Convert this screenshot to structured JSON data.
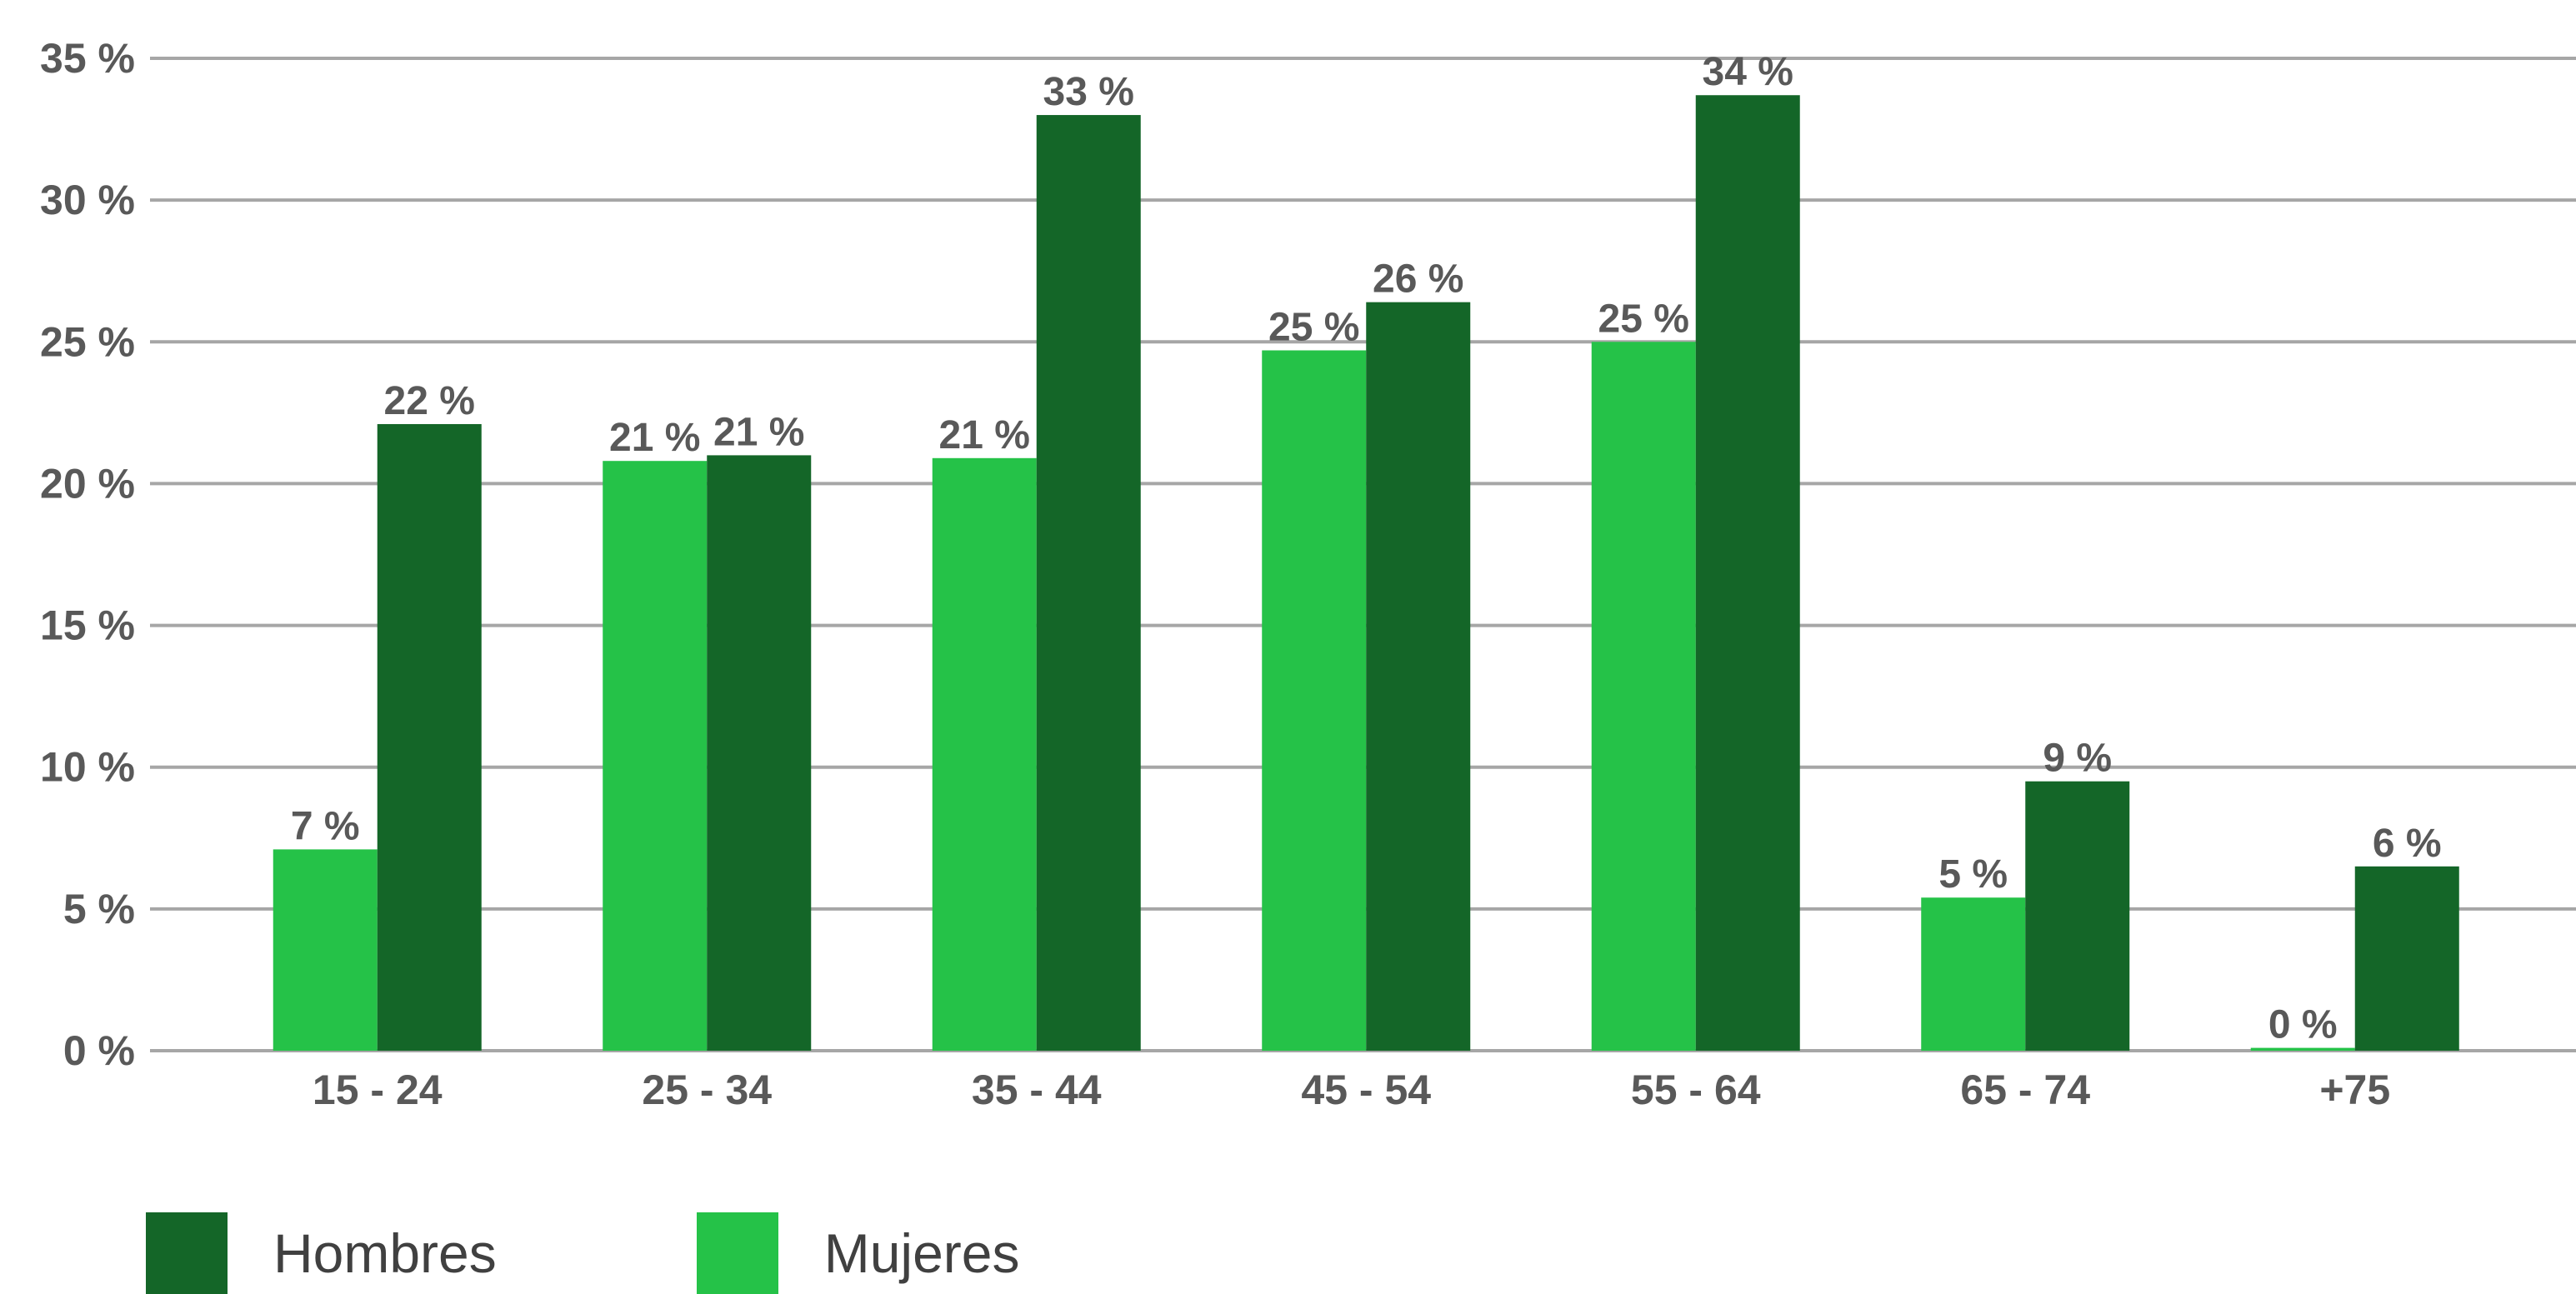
{
  "chart_data": {
    "type": "bar",
    "categories": [
      "15 - 24",
      "25 - 34",
      "35 - 44",
      "45 - 54",
      "55 - 64",
      "65 - 74",
      "+75"
    ],
    "series": [
      {
        "name": "Mujeres",
        "color": "#25c248",
        "values": [
          7.1,
          20.8,
          20.9,
          24.7,
          25.0,
          5.4,
          0.1
        ],
        "labels": [
          "7 %",
          "21 %",
          "21 %",
          "25 %",
          "25 %",
          "5 %",
          "0 %"
        ]
      },
      {
        "name": "Hombres",
        "color": "#146628",
        "values": [
          22.1,
          21.0,
          33.0,
          26.4,
          33.7,
          9.5,
          6.5
        ],
        "labels": [
          "22 %",
          "21 %",
          "33 %",
          "26 %",
          "34 %",
          "9 %",
          "6 %"
        ]
      }
    ],
    "ylim": [
      0,
      35
    ],
    "yticks": [
      "0 %",
      "5 %",
      "10 %",
      "15 %",
      "20 %",
      "25 %",
      "30 %",
      "35 %"
    ],
    "title": "",
    "xlabel": "",
    "ylabel": "",
    "grid": true,
    "gridline_color": "#a6a6a6",
    "legend_position": "bottom-left",
    "legend": [
      {
        "name": "Hombres",
        "color": "#146628"
      },
      {
        "name": "Mujeres",
        "color": "#25c248"
      }
    ]
  }
}
